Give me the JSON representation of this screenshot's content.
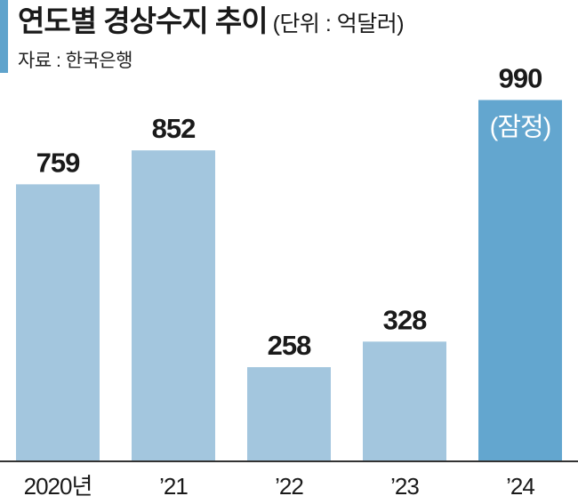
{
  "header": {
    "title": "연도별 경상수지 추이",
    "unit": "(단위 : 억달러)",
    "source": "자료 : 한국은행"
  },
  "colors": {
    "accent": "#5fa3cc",
    "bar": "#a3c6de",
    "bar_highlight": "#63a6cf",
    "axis": "#333333"
  },
  "chart_data": {
    "type": "bar",
    "title": "연도별 경상수지 추이",
    "unit": "억달러",
    "categories": [
      "2020년",
      "’21",
      "’22",
      "’23",
      "’24"
    ],
    "values": [
      759,
      852,
      258,
      328,
      990
    ],
    "value_labels": [
      "759",
      "852",
      "258",
      "328",
      "990"
    ],
    "highlight_index": 4,
    "highlight_note": "(잠정)",
    "ylim": [
      0,
      1050
    ],
    "grid": false,
    "legend": "none"
  }
}
